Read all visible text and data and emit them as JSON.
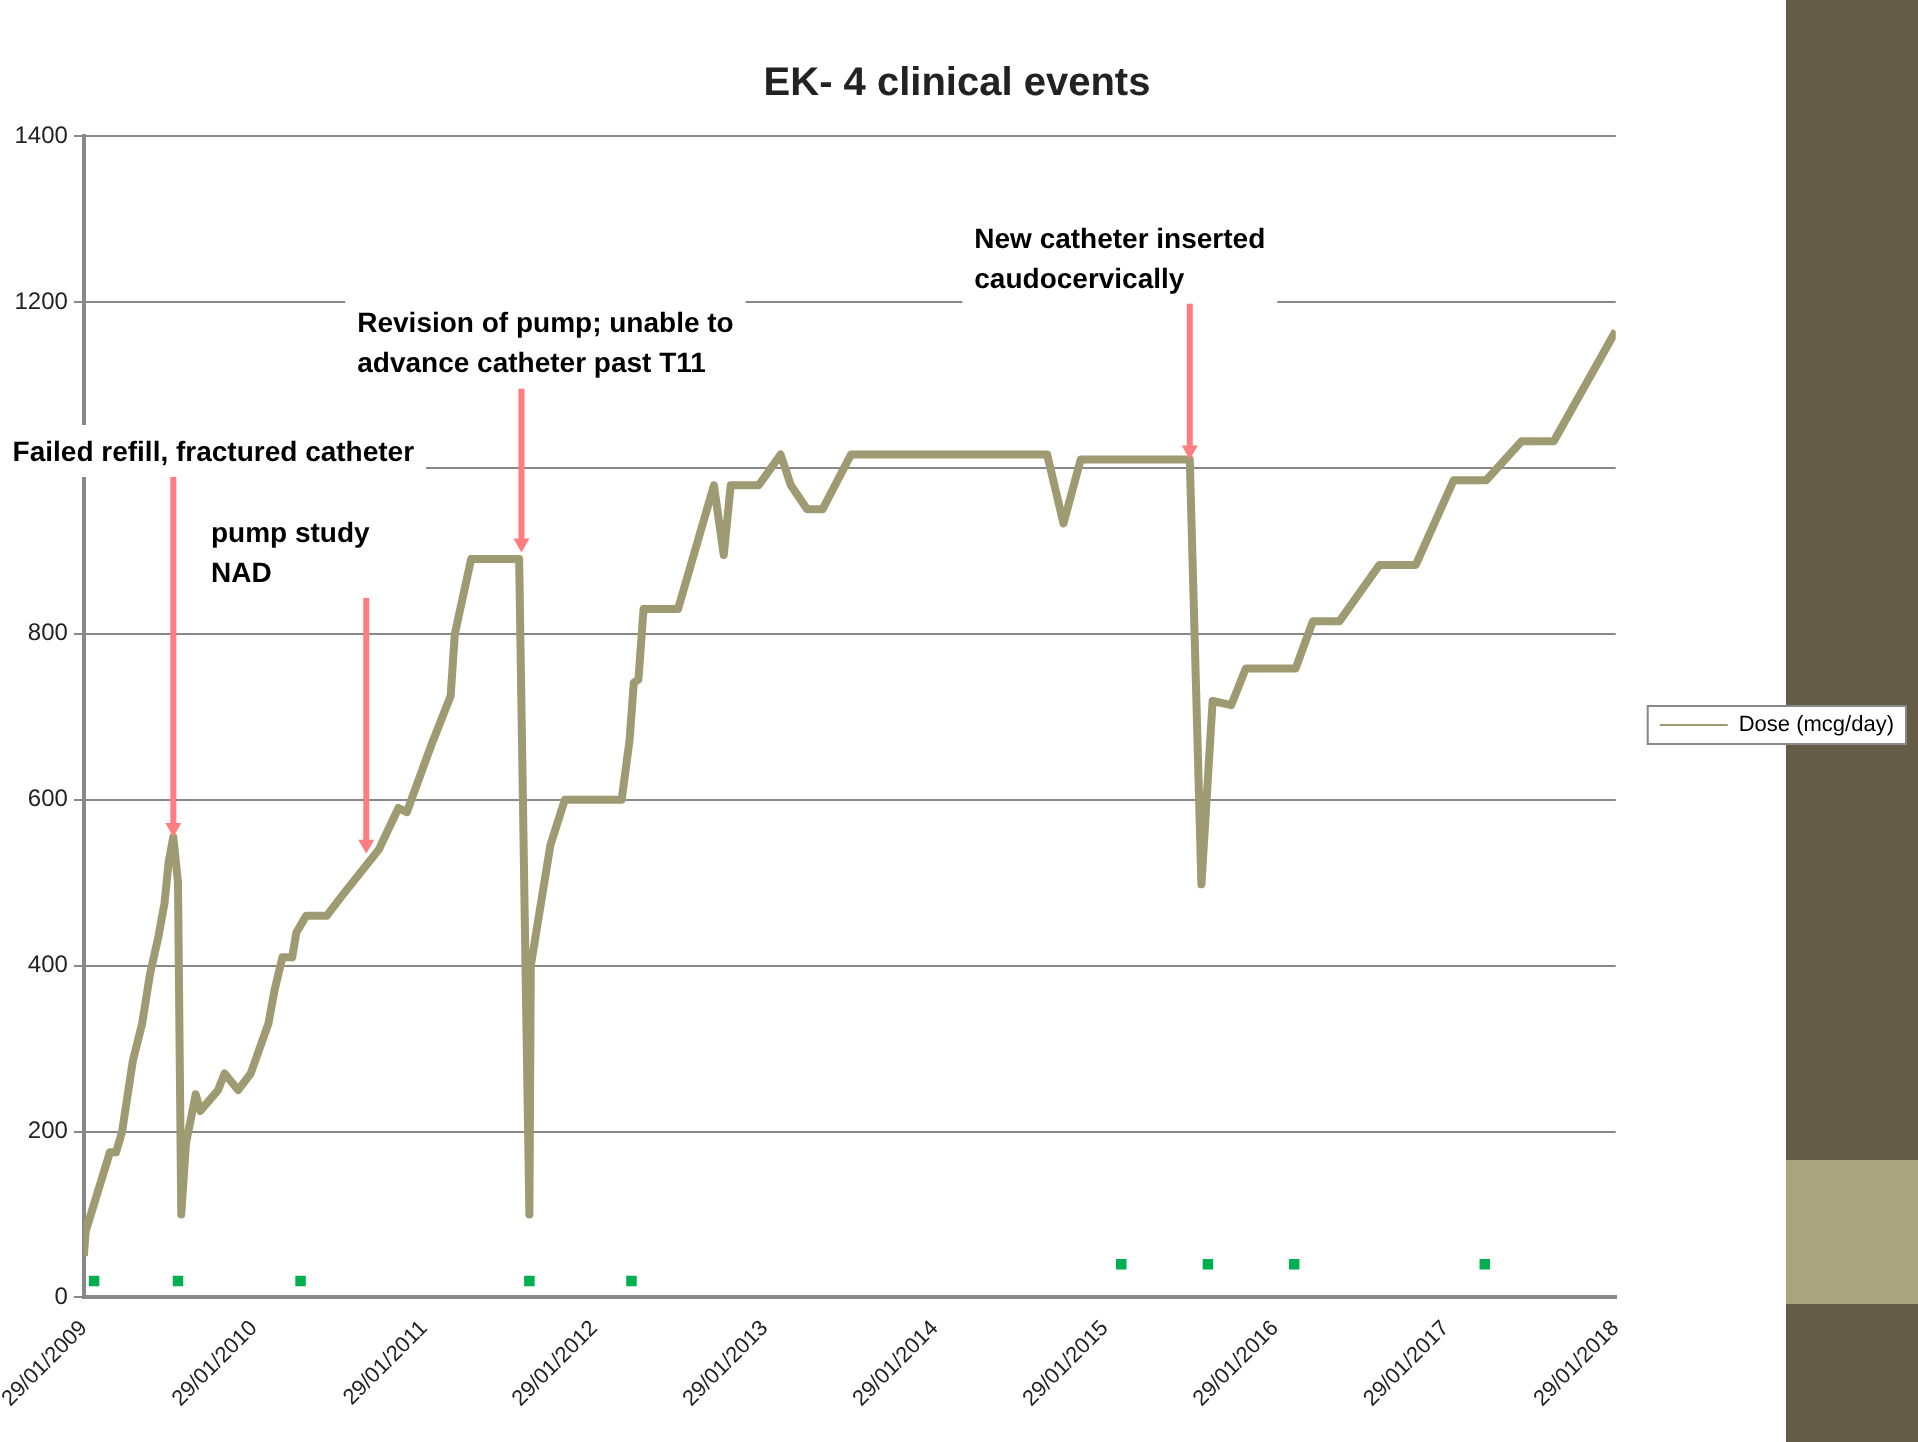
{
  "chart_data": {
    "type": "line",
    "title": "EK- 4 clinical events",
    "series": [
      {
        "name": "Dose (mcg/day)",
        "color": "#9e9a72",
        "marker": "none",
        "x": [
          "2009-01-29",
          "2009-02-02",
          "2009-03-26",
          "2009-04-08",
          "2009-04-21",
          "2009-05-14",
          "2009-06-03",
          "2009-06-20",
          "2009-07-08",
          "2009-07-21",
          "2009-07-30",
          "2009-08-09",
          "2009-08-19",
          "2009-08-26",
          "2009-09-05",
          "2009-09-26",
          "2009-10-06",
          "2009-11-13",
          "2009-11-27",
          "2009-12-26",
          "2010-01-22",
          "2010-03-01",
          "2010-03-14",
          "2010-03-31",
          "2010-04-21",
          "2010-04-30",
          "2010-05-21",
          "2010-07-04",
          "2010-08-07",
          "2010-10-24",
          "2010-12-05",
          "2010-12-23",
          "2011-02-13",
          "2011-03-27",
          "2011-04-05",
          "2011-05-10",
          "2011-08-21",
          "2011-09-12",
          "2011-09-15",
          "2011-10-27",
          "2011-11-27",
          "2012-03-28",
          "2012-04-14",
          "2012-04-23",
          "2012-05-03",
          "2012-05-14",
          "2012-07-27",
          "2012-10-12",
          "2012-11-02",
          "2012-11-17",
          "2013-01-16",
          "2013-03-04",
          "2013-03-26",
          "2013-04-30",
          "2013-06-02",
          "2013-08-02",
          "2014-09-27",
          "2014-11-01",
          "2014-12-08",
          "2015-07-30",
          "2015-08-24",
          "2015-09-17",
          "2015-10-27",
          "2015-11-27",
          "2016-03-13",
          "2016-04-19",
          "2016-06-15",
          "2016-09-09",
          "2016-11-26",
          "2017-02-15",
          "2017-04-26",
          "2017-07-11",
          "2017-09-18",
          "2018-01-29"
        ],
        "values": [
          50,
          80,
          175,
          175,
          200,
          285,
          330,
          390,
          435,
          475,
          525,
          555,
          500,
          100,
          185,
          245,
          225,
          250,
          270,
          250,
          270,
          330,
          370,
          410,
          410,
          440,
          460,
          460,
          485,
          540,
          590,
          585,
          665,
          725,
          800,
          890,
          890,
          100,
          400,
          545,
          600,
          600,
          672,
          741,
          745,
          830,
          830,
          979,
          895,
          979,
          979,
          1016,
          979,
          950,
          950,
          1016,
          1016,
          933,
          1010,
          1010,
          498,
          719,
          714,
          758,
          758,
          815,
          815,
          883,
          883,
          985,
          985,
          1032,
          1032,
          1165
        ]
      },
      {
        "color": "#00b050",
        "type": "scatter",
        "marker": "square",
        "x": [
          "2009-02-20",
          "2009-08-19",
          "2010-05-09",
          "2011-09-12",
          "2012-04-18",
          "2015-03-05",
          "2015-09-07",
          "2016-03-10",
          "2017-04-23"
        ],
        "values": [
          20,
          20,
          20,
          20,
          20,
          40,
          40,
          40,
          40
        ]
      }
    ],
    "xlim": [
      "2009-01-29",
      "2018-01-29"
    ],
    "xticks": [
      {
        "value": "2009-01-29",
        "label": "29/01/2009"
      },
      {
        "value": "2010-01-29",
        "label": "29/01/2010"
      },
      {
        "value": "2011-01-29",
        "label": "29/01/2011"
      },
      {
        "value": "2012-01-29",
        "label": "29/01/2012"
      },
      {
        "value": "2013-01-29",
        "label": "29/01/2013"
      },
      {
        "value": "2014-01-29",
        "label": "29/01/2014"
      },
      {
        "value": "2015-01-29",
        "label": "29/01/2015"
      },
      {
        "value": "2016-01-29",
        "label": "29/01/2016"
      },
      {
        "value": "2017-01-29",
        "label": "29/01/2017"
      },
      {
        "value": "2018-01-29",
        "label": "29/01/2018"
      }
    ],
    "ylim": [
      0,
      1400
    ],
    "yticks": [
      0,
      200,
      400,
      600,
      800,
      {
        "value": 1000,
        "label": null
      },
      1200,
      1400
    ],
    "grid": "y",
    "legend": "right",
    "annotations": [
      {
        "text": "Failed refill, fractured catheter",
        "x": "2009-08-09",
        "y": 555
      },
      {
        "text": "pump study\nNAD",
        "x": "2010-09-27",
        "y": 535
      },
      {
        "text": "Revision of pump; unable to\nadvance catheter past T11",
        "x": "2011-08-26",
        "y": 898
      },
      {
        "text": "New catheter inserted\ncaudocervically",
        "x": "2015-07-30",
        "y": 1010
      }
    ]
  }
}
